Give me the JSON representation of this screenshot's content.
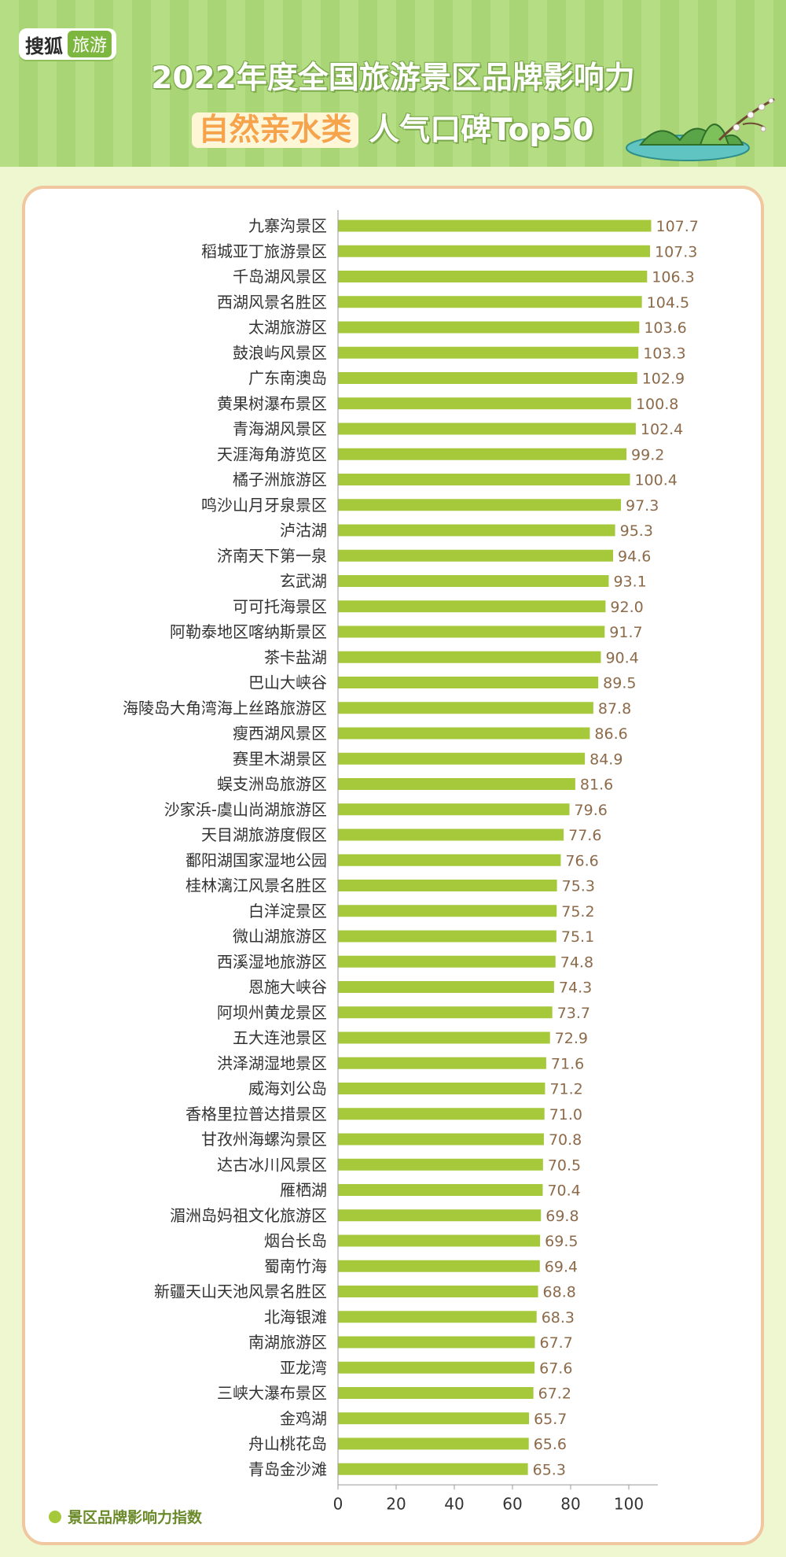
{
  "header": {
    "logo_text": "搜狐",
    "logo_tag": "旅游",
    "title_line1": "2022年度全国旅游景区品牌影响力",
    "title_highlight": "自然亲水类",
    "title_rest": "人气口碑Top50"
  },
  "colors": {
    "bar": "#a6c93c",
    "value_label": "#8c6a4a",
    "category_label": "#333333",
    "card_border": "#f1c79f",
    "header_bg": "#b5dd84"
  },
  "icons": [
    "lake-island-illustration",
    "legend-dot-icon"
  ],
  "chart_data": {
    "type": "bar",
    "orientation": "horizontal",
    "title": "2022年度全国旅游景区品牌影响力 自然亲水类人气口碑Top50",
    "legend": "景区品牌影响力指数",
    "legend_position": "bottom-left",
    "xlim": [
      0,
      110
    ],
    "xticks": [
      0,
      20,
      40,
      60,
      80,
      100
    ],
    "grid": false,
    "categories": [
      "九寨沟景区",
      "稻城亚丁旅游景区",
      "千岛湖风景区",
      "西湖风景名胜区",
      "太湖旅游区",
      "鼓浪屿风景区",
      "广东南澳岛",
      "黄果树瀑布景区",
      "青海湖风景区",
      "天涯海角游览区",
      "橘子洲旅游区",
      "鸣沙山月牙泉景区",
      "泸沽湖",
      "济南天下第一泉",
      "玄武湖",
      "可可托海景区",
      "阿勒泰地区喀纳斯景区",
      "茶卡盐湖",
      "巴山大峡谷",
      "海陵岛大角湾海上丝路旅游区",
      "瘦西湖风景区",
      "赛里木湖景区",
      "蜈支洲岛旅游区",
      "沙家浜-虞山尚湖旅游区",
      "天目湖旅游度假区",
      "鄱阳湖国家湿地公园",
      "桂林漓江风景名胜区",
      "白洋淀景区",
      "微山湖旅游区",
      "西溪湿地旅游区",
      "恩施大峡谷",
      "阿坝州黄龙景区",
      "五大连池景区",
      "洪泽湖湿地景区",
      "威海刘公岛",
      "香格里拉普达措景区",
      "甘孜州海螺沟景区",
      "达古冰川风景区",
      "雁栖湖",
      "湄洲岛妈祖文化旅游区",
      "烟台长岛",
      "蜀南竹海",
      "新疆天山天池风景名胜区",
      "北海银滩",
      "南湖旅游区",
      "亚龙湾",
      "三峡大瀑布景区",
      "金鸡湖",
      "舟山桃花岛",
      "青岛金沙滩"
    ],
    "values": [
      107.7,
      107.3,
      106.3,
      104.5,
      103.6,
      103.3,
      102.9,
      100.8,
      102.4,
      99.2,
      100.4,
      97.3,
      95.3,
      94.6,
      93.1,
      92.0,
      91.7,
      90.4,
      89.5,
      87.8,
      86.6,
      84.9,
      81.6,
      79.6,
      77.6,
      76.6,
      75.3,
      75.2,
      75.1,
      74.8,
      74.3,
      73.7,
      72.9,
      71.6,
      71.2,
      71.0,
      70.8,
      70.5,
      70.4,
      69.8,
      69.5,
      69.4,
      68.8,
      68.3,
      67.7,
      67.6,
      67.2,
      65.7,
      65.6,
      65.3
    ],
    "value_labels": [
      "107.7",
      "107.3",
      "106.3",
      "104.5",
      "103.6",
      "103.3",
      "102.9",
      "100.8",
      "102.4",
      "99.2",
      "100.4",
      "97.3",
      "95.3",
      "94.6",
      "93.1",
      "92.0",
      "91.7",
      "90.4",
      "89.5",
      "87.8",
      "86.6",
      "84.9",
      "81.6",
      "79.6",
      "77.6",
      "76.6",
      "75.3",
      "75.2",
      "75.1",
      "74.8",
      "74.3",
      "73.7",
      "72.9",
      "71.6",
      "71.2",
      "71.0",
      "70.8",
      "70.5",
      "70.4",
      "69.8",
      "69.5",
      "69.4",
      "68.8",
      "68.3",
      "67.7",
      "67.6",
      "67.2",
      "65.7",
      "65.6",
      "65.3"
    ]
  }
}
